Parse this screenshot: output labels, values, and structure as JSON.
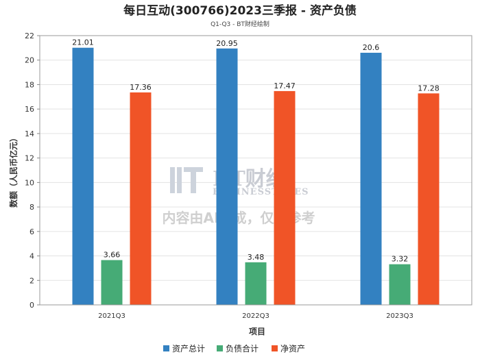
{
  "chart_data": {
    "type": "bar",
    "title": "每日互动(300766)2023三季报 - 资产负债",
    "subtitle": "Q1-Q3 - BT财经绘制",
    "xlabel": "项目",
    "ylabel": "数额（人民币亿元）",
    "categories": [
      "2021Q3",
      "2022Q3",
      "2023Q3"
    ],
    "ylim": [
      0,
      22
    ],
    "yticks": [
      0,
      2,
      4,
      6,
      8,
      10,
      12,
      14,
      16,
      18,
      20,
      22
    ],
    "grid": true,
    "legend_position": "bottom-center",
    "series": [
      {
        "name": "资产总计",
        "color": "#3381c1",
        "values": [
          21.01,
          20.95,
          20.6
        ],
        "labels": [
          "21.01",
          "20.95",
          "20.6"
        ]
      },
      {
        "name": "负债合计",
        "color": "#46ab76",
        "values": [
          3.66,
          3.48,
          3.32
        ],
        "labels": [
          "3.66",
          "3.48",
          "3.32"
        ]
      },
      {
        "name": "净资产",
        "color": "#f05427",
        "values": [
          17.36,
          17.47,
          17.28
        ],
        "labels": [
          "17.36",
          "17.47",
          "17.28"
        ]
      }
    ]
  },
  "watermark": {
    "brand": "BT财经",
    "brand_en": "BUSINESSTIMES",
    "notice": "内容由AI生成，仅供参考"
  }
}
